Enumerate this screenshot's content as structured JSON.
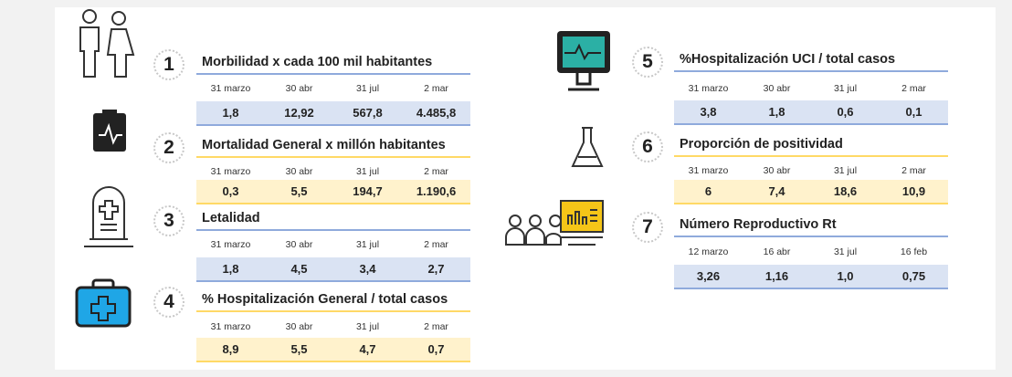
{
  "panels": [
    {
      "number": "1",
      "title": "Morbilidad x cada 100 mil habitantes",
      "headers": [
        "31 marzo",
        "30 abr",
        "31 jul",
        "2 mar"
      ],
      "values": [
        "1,8",
        "12,92",
        "567,8",
        "4.485,8"
      ]
    },
    {
      "number": "2",
      "title": "Mortalidad General x millón habitantes",
      "headers": [
        "31 marzo",
        "30 abr",
        "31 jul",
        "2 mar"
      ],
      "values": [
        "0,3",
        "5,5",
        "194,7",
        "1.190,6"
      ]
    },
    {
      "number": "3",
      "title": "Letalidad",
      "headers": [
        "31 marzo",
        "30 abr",
        "31 jul",
        "2 mar"
      ],
      "values": [
        "1,8",
        "4,5",
        "3,4",
        "2,7"
      ]
    },
    {
      "number": "4",
      "title": "% Hospitalización General / total casos",
      "headers": [
        "31 marzo",
        "30 abr",
        "31 jul",
        "2 mar"
      ],
      "values": [
        "8,9",
        "5,5",
        "4,7",
        "0,7"
      ]
    },
    {
      "number": "5",
      "title": "%Hospitalización UCI / total casos",
      "headers": [
        "31 marzo",
        "30 abr",
        "31 jul",
        "2 mar"
      ],
      "values": [
        "3,8",
        "1,8",
        "0,6",
        "0,1"
      ]
    },
    {
      "number": "6",
      "title": "Proporción de positividad",
      "headers": [
        "31 marzo",
        "30 abr",
        "31 jul",
        "2 mar"
      ],
      "values": [
        "6",
        "7,4",
        "18,6",
        "10,9"
      ]
    },
    {
      "number": "7",
      "title": "Número Reproductivo Rt",
      "headers": [
        "12 marzo",
        "16 abr",
        "31 jul",
        "16 feb"
      ],
      "values": [
        "3,26",
        "1,16",
        "1,0",
        "0,75"
      ]
    }
  ]
}
